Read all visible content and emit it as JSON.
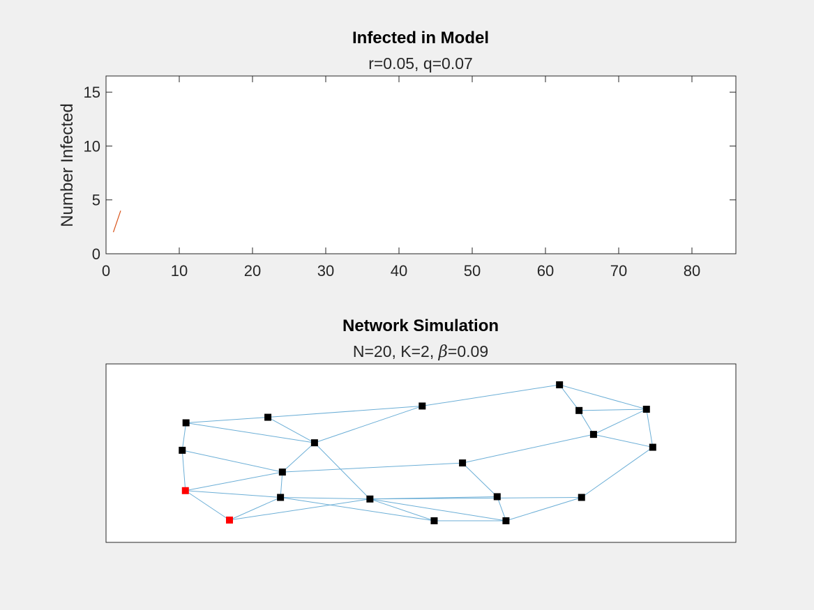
{
  "chart_data": [
    {
      "type": "line",
      "title": "Infected in Model",
      "subtitle": "r=0.05, q=0.07",
      "xlabel": "",
      "ylabel": "Number Infected",
      "xlim": [
        0,
        86
      ],
      "ylim": [
        0,
        16.5
      ],
      "xticks": [
        0,
        10,
        20,
        30,
        40,
        50,
        60,
        70,
        80
      ],
      "yticks": [
        0,
        5,
        10,
        15
      ],
      "series": [
        {
          "x": [
            1,
            2
          ],
          "y": [
            2,
            4
          ],
          "color": "#d95319"
        }
      ]
    },
    {
      "type": "scatter",
      "title": "Network Simulation",
      "subtitle_parts": [
        "N=20, K=2, ",
        "β",
        "=0.09"
      ],
      "node_color": "#000000",
      "infected_color": "#ff0000",
      "edge_color": "#6baed6",
      "nodes": [
        {
          "id": 0,
          "x": 0.72,
          "y": 0.883,
          "infected": false
        },
        {
          "id": 1,
          "x": 0.751,
          "y": 0.739,
          "infected": false
        },
        {
          "id": 2,
          "x": 0.858,
          "y": 0.746,
          "infected": false
        },
        {
          "id": 3,
          "x": 0.774,
          "y": 0.605,
          "infected": false
        },
        {
          "id": 4,
          "x": 0.868,
          "y": 0.533,
          "infected": false
        },
        {
          "id": 5,
          "x": 0.566,
          "y": 0.445,
          "infected": false
        },
        {
          "id": 6,
          "x": 0.755,
          "y": 0.252,
          "infected": false
        },
        {
          "id": 7,
          "x": 0.621,
          "y": 0.256,
          "infected": false
        },
        {
          "id": 8,
          "x": 0.419,
          "y": 0.243,
          "infected": false
        },
        {
          "id": 9,
          "x": 0.521,
          "y": 0.121,
          "infected": false
        },
        {
          "id": 10,
          "x": 0.635,
          "y": 0.121,
          "infected": false
        },
        {
          "id": 11,
          "x": 0.277,
          "y": 0.252,
          "infected": false
        },
        {
          "id": 12,
          "x": 0.28,
          "y": 0.394,
          "infected": false
        },
        {
          "id": 13,
          "x": 0.331,
          "y": 0.558,
          "infected": false
        },
        {
          "id": 14,
          "x": 0.196,
          "y": 0.125,
          "infected": true
        },
        {
          "id": 15,
          "x": 0.126,
          "y": 0.29,
          "infected": true
        },
        {
          "id": 16,
          "x": 0.121,
          "y": 0.516,
          "infected": false
        },
        {
          "id": 17,
          "x": 0.127,
          "y": 0.67,
          "infected": false
        },
        {
          "id": 18,
          "x": 0.257,
          "y": 0.701,
          "infected": false
        },
        {
          "id": 19,
          "x": 0.502,
          "y": 0.764,
          "infected": false
        }
      ],
      "edges": [
        [
          0,
          1
        ],
        [
          0,
          2
        ],
        [
          0,
          19
        ],
        [
          1,
          2
        ],
        [
          1,
          3
        ],
        [
          2,
          3
        ],
        [
          2,
          4
        ],
        [
          3,
          4
        ],
        [
          4,
          6
        ],
        [
          3,
          5
        ],
        [
          5,
          12
        ],
        [
          5,
          7
        ],
        [
          6,
          8
        ],
        [
          6,
          10
        ],
        [
          7,
          8
        ],
        [
          7,
          10
        ],
        [
          8,
          9
        ],
        [
          8,
          10
        ],
        [
          8,
          11
        ],
        [
          8,
          13
        ],
        [
          9,
          10
        ],
        [
          9,
          11
        ],
        [
          11,
          12
        ],
        [
          11,
          14
        ],
        [
          11,
          15
        ],
        [
          12,
          13
        ],
        [
          12,
          15
        ],
        [
          12,
          16
        ],
        [
          13,
          17
        ],
        [
          13,
          18
        ],
        [
          13,
          19
        ],
        [
          14,
          15
        ],
        [
          14,
          8
        ],
        [
          15,
          16
        ],
        [
          16,
          17
        ],
        [
          17,
          18
        ],
        [
          18,
          19
        ]
      ]
    }
  ]
}
